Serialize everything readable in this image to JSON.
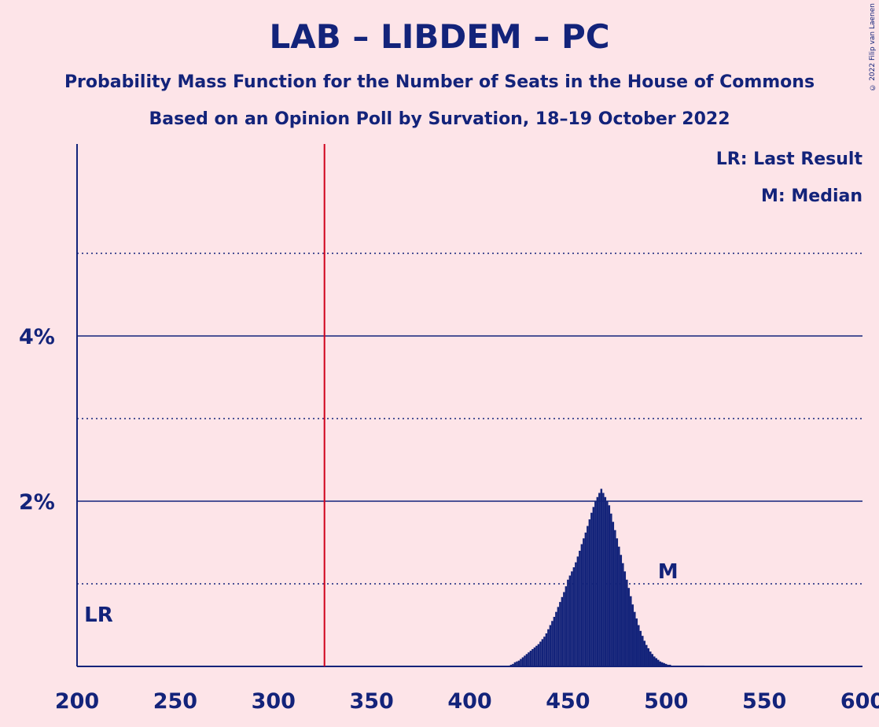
{
  "title": "LAB – LIBDEM – PC",
  "subtitle1": "Probability Mass Function for the Number of Seats in the House of Commons",
  "subtitle2": "Based on an Opinion Poll by Survation, 18–19 October 2022",
  "copyright": "© 2022 Filip van Laenen",
  "colors": {
    "background": "#fde4e8",
    "text": "#13237a",
    "majority_line": "#d0021b"
  },
  "chart_data": {
    "type": "bar",
    "x_range": [
      200,
      600
    ],
    "y_range": [
      0,
      6.3
    ],
    "x_ticks": [
      200,
      250,
      300,
      350,
      400,
      450,
      500,
      550,
      600
    ],
    "x_tick_labels": [
      "200",
      "250",
      "300",
      "350",
      "400",
      "450",
      "500",
      "550",
      "600"
    ],
    "y_ticks_major": [
      2,
      4
    ],
    "y_tick_labels": [
      "2%",
      "4%"
    ],
    "y_gridlines_minor": [
      1,
      3,
      5
    ],
    "majority_line_x": 326,
    "last_result_seats": 211,
    "last_result_label": "LR",
    "median_seats": 501,
    "median_label": "M",
    "legend": [
      "LR: Last Result",
      "M: Median"
    ],
    "bars_start_seat": 420,
    "bar_values": [
      0.01,
      0.02,
      0.03,
      0.05,
      0.06,
      0.07,
      0.09,
      0.11,
      0.13,
      0.15,
      0.17,
      0.19,
      0.21,
      0.23,
      0.25,
      0.27,
      0.3,
      0.33,
      0.36,
      0.4,
      0.45,
      0.5,
      0.55,
      0.6,
      0.66,
      0.72,
      0.78,
      0.84,
      0.9,
      0.97,
      1.05,
      1.1,
      1.15,
      1.2,
      1.26,
      1.33,
      1.4,
      1.48,
      1.55,
      1.62,
      1.7,
      1.78,
      1.86,
      1.93,
      2.0,
      2.05,
      2.1,
      2.15,
      2.1,
      2.05,
      2.0,
      1.95,
      1.85,
      1.75,
      1.65,
      1.55,
      1.45,
      1.35,
      1.25,
      1.15,
      1.05,
      0.95,
      0.85,
      0.75,
      0.66,
      0.58,
      0.5,
      0.43,
      0.37,
      0.31,
      0.26,
      0.22,
      0.18,
      0.15,
      0.12,
      0.1,
      0.08,
      0.06,
      0.05,
      0.04,
      0.03,
      0.02,
      0.02,
      0.01,
      0.01,
      0.01,
      0.01,
      0.01,
      0.01,
      0.01,
      0.01,
      0.01,
      0.01,
      0.01,
      0.01,
      0.01,
      0.01,
      0.01,
      0.01,
      0.01
    ]
  }
}
